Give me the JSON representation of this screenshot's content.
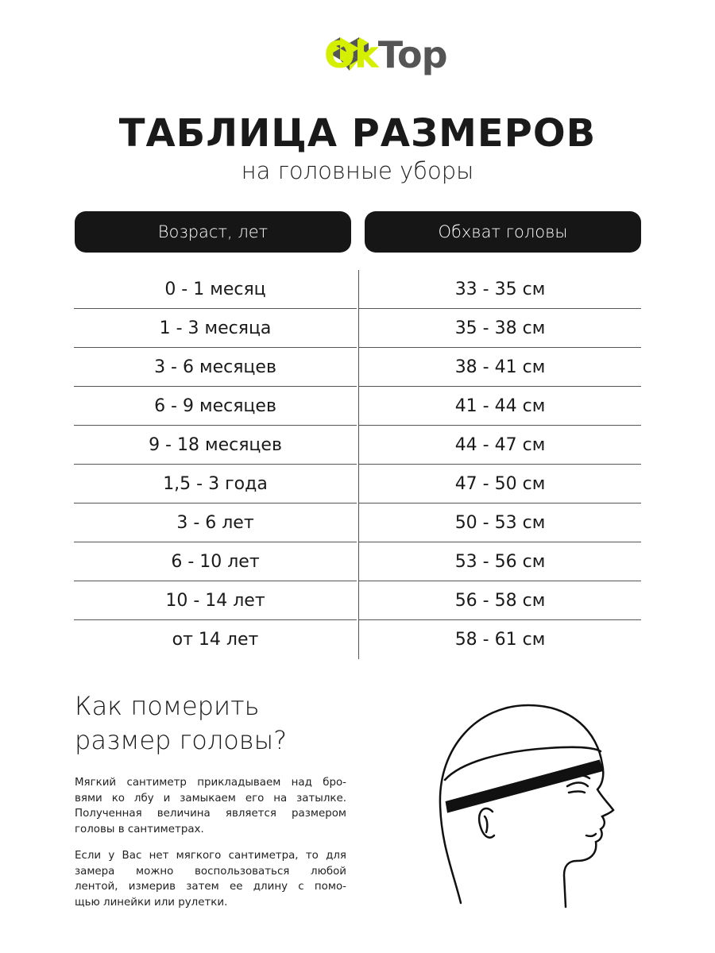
{
  "brand": {
    "logo_ok": "Ok",
    "logo_top": "Top",
    "colors": {
      "lime": "#d4f000",
      "gray": "#555555"
    }
  },
  "title": "ТАБЛИЦА РАЗМЕРОВ",
  "subtitle": "на головные уборы",
  "table": {
    "headers": [
      "Возраст, лет",
      "Обхват головы"
    ],
    "rows": [
      [
        "0 - 1 месяц",
        "33 - 35 см"
      ],
      [
        "1 - 3 месяца",
        "35 - 38 см"
      ],
      [
        "3 - 6 месяцев",
        "38 - 41 см"
      ],
      [
        "6 - 9 месяцев",
        "41 - 44 см"
      ],
      [
        "9 - 18 месяцев",
        "44 - 47 см"
      ],
      [
        "1,5 - 3 года",
        "47 - 50 см"
      ],
      [
        "3 - 6 лет",
        "50 - 53 см"
      ],
      [
        "6 - 10 лет",
        "53 - 56 см"
      ],
      [
        "10 - 14 лет",
        "56 - 58 см"
      ],
      [
        "от 14 лет",
        "58 - 61 см"
      ]
    ]
  },
  "howto": {
    "heading": [
      "Как померить",
      "размер головы?"
    ],
    "paragraphs": [
      [
        "Мягкий сантиметр прикладываем над бро-",
        "вями ко лбу и замыкаем его на затылке.",
        "Полученная величина является размером",
        "головы в сантиметрах."
      ],
      [
        "Если у Вас нет мягкого сантиметра, то для",
        "замера можно воспользоваться любой",
        "лентой, измерив затем ее длину с помо-",
        "щью линейки или рулетки."
      ]
    ]
  },
  "illustration": {
    "icon": "head-measuring-tape-icon"
  }
}
